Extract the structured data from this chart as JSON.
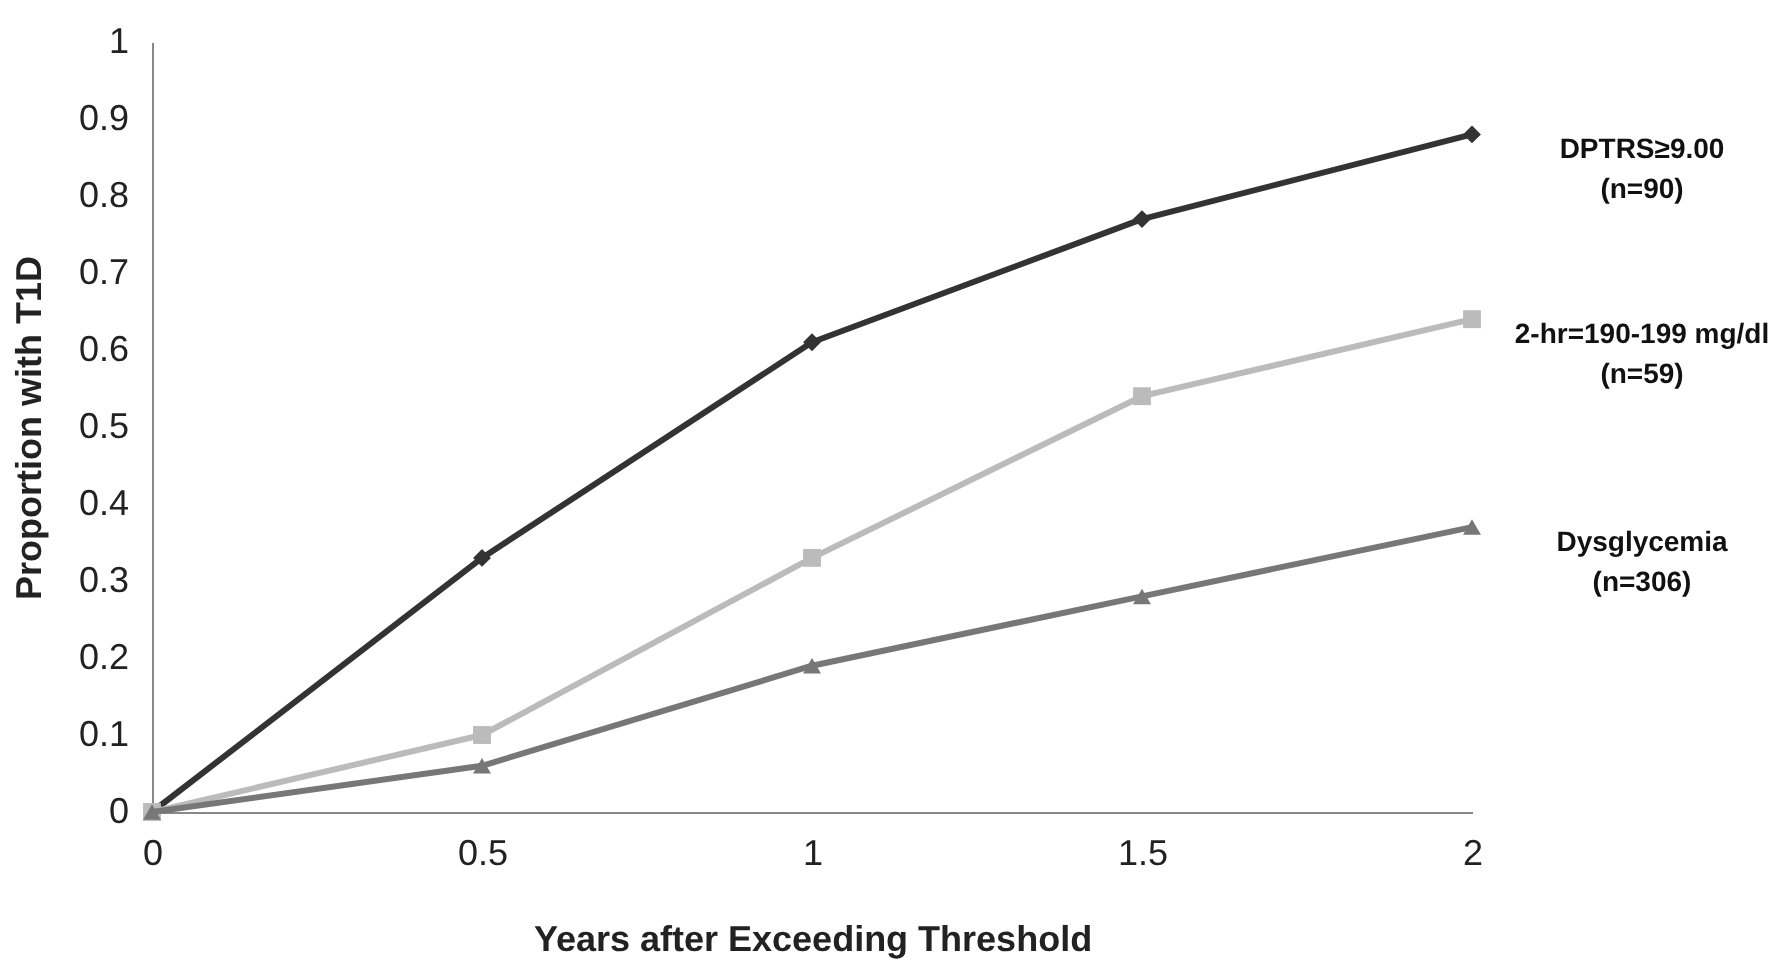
{
  "chart_data": {
    "type": "line",
    "xlabel": "Years after Exceeding Threshold",
    "ylabel": "Proportion with T1D",
    "x": [
      0,
      0.5,
      1,
      1.5,
      2
    ],
    "series": [
      {
        "name": "DPTRS≥9.00\n(n=90)",
        "color": "#333333",
        "marker": "diamond",
        "values": [
          0,
          0.33,
          0.61,
          0.77,
          0.88
        ]
      },
      {
        "name": "2-hr=190-199 mg/dl\n(n=59)",
        "color": "#bbbbbb",
        "marker": "square",
        "values": [
          0,
          0.1,
          0.33,
          0.54,
          0.64
        ]
      },
      {
        "name": "Dysglycemia\n(n=306)",
        "color": "#777777",
        "marker": "triangle",
        "values": [
          0,
          0.06,
          0.19,
          0.28,
          0.37
        ]
      }
    ],
    "xlim": [
      0,
      2
    ],
    "xticks": [
      0,
      0.5,
      1,
      1.5,
      2
    ],
    "ylim": [
      0,
      1
    ],
    "yticks": [
      0,
      0.1,
      0.2,
      0.3,
      0.4,
      0.5,
      0.6,
      0.7,
      0.8,
      0.9,
      1
    ],
    "grid": false,
    "legend": false,
    "line_style": "solid"
  }
}
